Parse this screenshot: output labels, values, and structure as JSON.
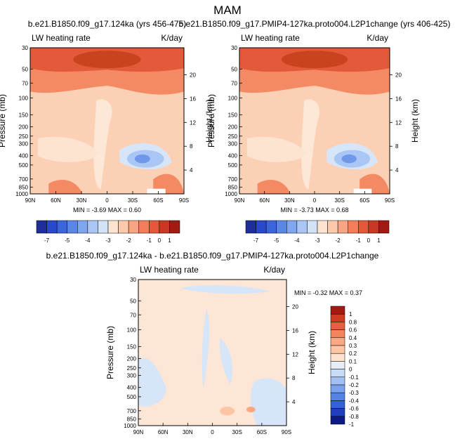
{
  "page": {
    "title": "MAM"
  },
  "colors": {
    "panel_palette": [
      "#1f2f9a",
      "#2a49c8",
      "#3a66d9",
      "#5a87e6",
      "#7fa7ef",
      "#a9c6f4",
      "#d2e2f7",
      "#fde4d1",
      "#fccaab",
      "#f9a583",
      "#f27e5c",
      "#e35a3a",
      "#c63a24",
      "#9f1c13"
    ],
    "diff_palette": [
      "#0b1a84",
      "#1f3fbf",
      "#3461d6",
      "#5582e3",
      "#7aa2ec",
      "#a0c1f2",
      "#c9dcf6",
      "#e7eef8",
      "#fde2cf",
      "#fcc6a5",
      "#f9a883",
      "#f3845f",
      "#e55f3d",
      "#cd3b22",
      "#a51a12"
    ],
    "bg_warm": "#fcd0b4",
    "bg_diff": "#fde6d6",
    "top_band": "#e35a3a",
    "top_core": "#c9431f",
    "mid_band": "#f48a64",
    "cool_blob": "#a9c6f4",
    "cool_core": "#6f98ea",
    "pale_blue": "#d7e5f8"
  },
  "axes": {
    "ylabel_left": "Pressure (mb)",
    "ylabel_right": "Height (km)",
    "pressure_ticks": [
      "30",
      "50",
      "70",
      "100",
      "150",
      "200",
      "250",
      "300",
      "400",
      "500",
      "700",
      "850",
      "1000"
    ],
    "height_ticks": [
      "20",
      "16",
      "12",
      "8",
      "4"
    ],
    "lat_ticks": [
      "90N",
      "60N",
      "30N",
      "0",
      "30S",
      "60S",
      "90S"
    ]
  },
  "panels": [
    {
      "title": "b.e21.B1850.f09_g17.124ka (yrs 456-475)",
      "left_label": "LW heating rate",
      "right_label": "K/day",
      "stats": "MIN =  -3.69   MAX =  0.60",
      "labelbar_labels": [
        "-7",
        "-5",
        "-4",
        "-3",
        "-2",
        "-1",
        "0",
        "1"
      ]
    },
    {
      "title": "b.e21.B1850.f09_g17.PMIP4-127ka.proto004.L2P1change (yrs 406-425)",
      "left_label": "LW heating rate",
      "right_label": "K/day",
      "stats": "MIN =  -3.73   MAX =  0.68",
      "labelbar_labels": [
        "-7",
        "-5",
        "-4",
        "-3",
        "-2",
        "-1",
        "0",
        "1"
      ]
    },
    {
      "title": "b.e21.B1850.f09_g17.124ka - b.e21.B1850.f09_g17.PMIP4-127ka.proto004.L2P1change",
      "left_label": "LW heating rate",
      "right_label": "K/day",
      "stats": "MIN =  -0.32   MAX =  0.37",
      "labelbar_labels": [
        "1",
        "0.8",
        "0.6",
        "0.4",
        "0.3",
        "0.2",
        "0.1",
        "0",
        "-0.1",
        "-0.2",
        "-0.3",
        "-0.4",
        "-0.6",
        "-0.8",
        "-1"
      ]
    }
  ],
  "chart_data": [
    {
      "type": "heatmap",
      "title": "b.e21.B1850.f09_g17.124ka (yrs 456-475)",
      "variable": "LW heating rate",
      "units": "K/day",
      "x": [
        "90N",
        "60N",
        "30N",
        "0",
        "30S",
        "60S",
        "90S"
      ],
      "y_pressure_mb": [
        30,
        50,
        70,
        100,
        150,
        200,
        250,
        300,
        400,
        500,
        700,
        850,
        1000
      ],
      "y_height_km": [
        20,
        16,
        12,
        8,
        4
      ],
      "min": -3.69,
      "max": 0.6,
      "levels": [
        -7,
        -5,
        -4,
        -3,
        -2,
        -1,
        0,
        1
      ]
    },
    {
      "type": "heatmap",
      "title": "b.e21.B1850.f09_g17.PMIP4-127ka.proto004.L2P1change (yrs 406-425)",
      "variable": "LW heating rate",
      "units": "K/day",
      "x": [
        "90N",
        "60N",
        "30N",
        "0",
        "30S",
        "60S",
        "90S"
      ],
      "y_pressure_mb": [
        30,
        50,
        70,
        100,
        150,
        200,
        250,
        300,
        400,
        500,
        700,
        850,
        1000
      ],
      "y_height_km": [
        20,
        16,
        12,
        8,
        4
      ],
      "min": -3.73,
      "max": 0.68,
      "levels": [
        -7,
        -5,
        -4,
        -3,
        -2,
        -1,
        0,
        1
      ]
    },
    {
      "type": "heatmap",
      "title": "b.e21.B1850.f09_g17.124ka - b.e21.B1850.f09_g17.PMIP4-127ka.proto004.L2P1change",
      "variable": "LW heating rate",
      "units": "K/day",
      "x": [
        "90N",
        "60N",
        "30N",
        "0",
        "30S",
        "60S",
        "90S"
      ],
      "y_pressure_mb": [
        30,
        50,
        70,
        100,
        150,
        200,
        250,
        300,
        400,
        500,
        700,
        850,
        1000
      ],
      "y_height_km": [
        20,
        16,
        12,
        8,
        4
      ],
      "min": -0.32,
      "max": 0.37,
      "levels": [
        1,
        0.8,
        0.6,
        0.4,
        0.3,
        0.2,
        0.1,
        0,
        -0.1,
        -0.2,
        -0.3,
        -0.4,
        -0.6,
        -0.8,
        -1
      ]
    }
  ]
}
